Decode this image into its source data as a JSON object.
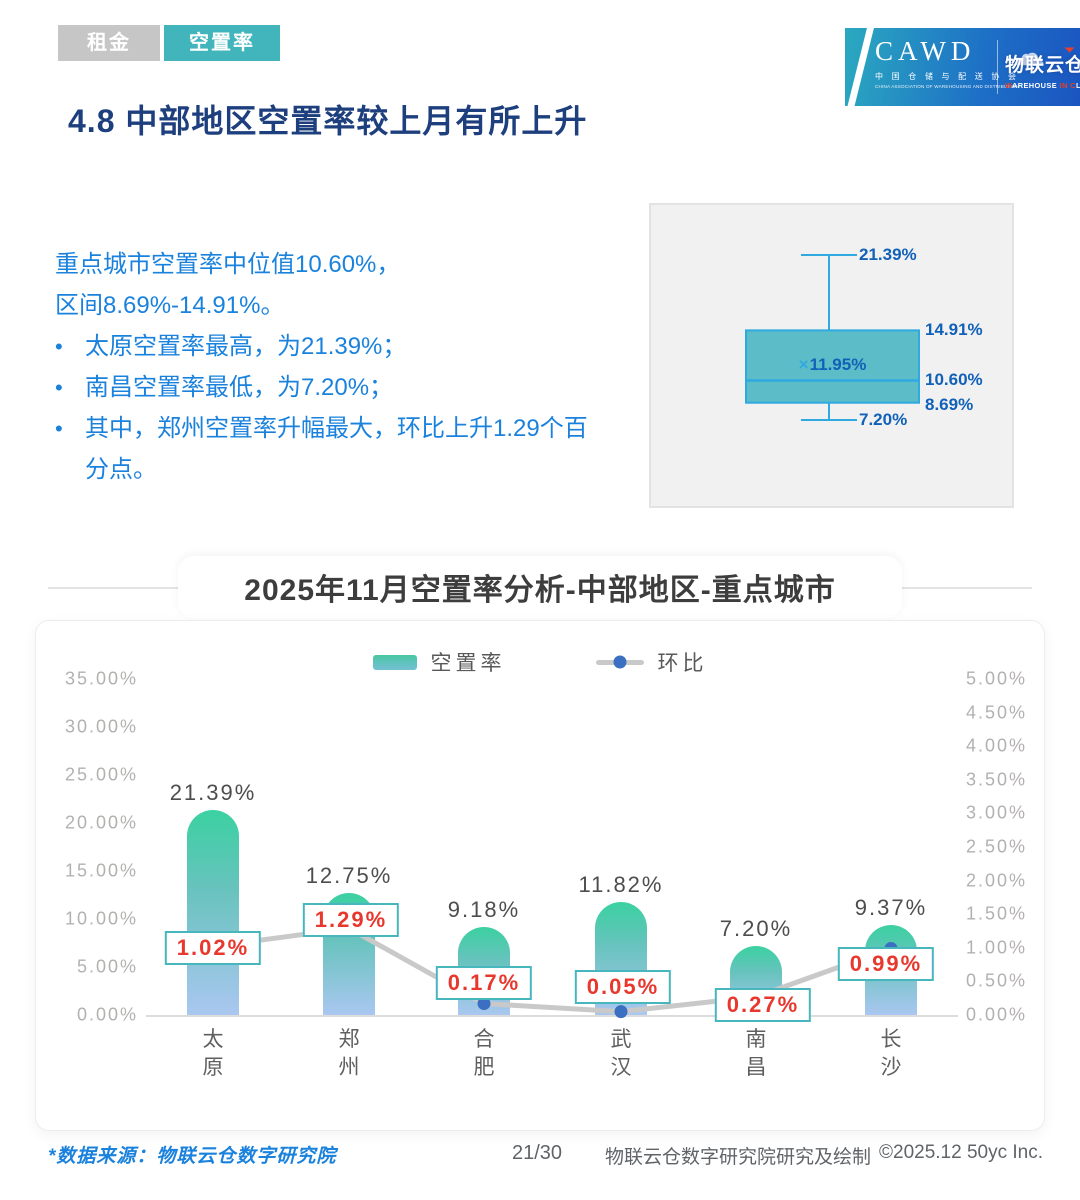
{
  "tabs": [
    {
      "label": "租金",
      "active": false
    },
    {
      "label": "空置率",
      "active": true
    }
  ],
  "logo": {
    "cawd_acronym": "CAWD",
    "cawd_cn": "中 国 仓 储 与 配 送 协 会",
    "cawd_en": "CHINA ASSOCIATION OF WAREHOUSING AND DISTRIBUTION",
    "brand_cn": "物联云仓",
    "brand_en_segments": [
      {
        "text": "W",
        "red": true
      },
      {
        "text": "AREHOUSE ",
        "red": false
      },
      {
        "text": "IN",
        "red": true
      },
      {
        "text": " ",
        "red": false
      },
      {
        "text": "C",
        "red": true
      },
      {
        "text": "LOUD",
        "red": false
      }
    ]
  },
  "page_title": "4.8 中部地区空置率较上月有所上升",
  "insight": {
    "intro_lines": [
      "重点城市空置率中位值10.60%，",
      "区间8.69%-14.91%。"
    ],
    "bullets": [
      "太原空置率最高，为21.39%；",
      "南昌空置率最低，为7.20%；",
      "其中，郑州空置率升幅最大，环比上升1.29个百分点。"
    ]
  },
  "boxplot": {
    "max": 21.39,
    "q3": 14.91,
    "mean": 11.95,
    "median": 10.6,
    "q1": 8.69,
    "min": 7.2,
    "labels": {
      "max": "21.39%",
      "q3": "14.91%",
      "mean_marker": "×",
      "mean": "11.95%",
      "median": "10.60%",
      "q1": "8.69%",
      "min": "7.20%"
    },
    "colors": {
      "box_fill": "#4fb8c4",
      "box_stroke": "#2fa9df",
      "label_text": "#1161b8"
    }
  },
  "chart_data": {
    "type": "bar",
    "subtype": "bar+line combo, dual axis",
    "title": "2025年11月空置率分析-中部地区-重点城市",
    "categories": [
      "太原",
      "郑州",
      "合肥",
      "武汉",
      "南昌",
      "长沙"
    ],
    "series": [
      {
        "name": "空置率",
        "type": "bar",
        "axis": "left",
        "values": [
          21.39,
          12.75,
          9.18,
          11.82,
          7.2,
          9.37
        ],
        "labels": [
          "21.39%",
          "12.75%",
          "9.18%",
          "11.82%",
          "7.20%",
          "9.37%"
        ]
      },
      {
        "name": "环比",
        "type": "line",
        "axis": "right",
        "values": [
          1.02,
          1.29,
          0.17,
          0.05,
          0.27,
          0.99
        ],
        "labels": [
          "1.02%",
          "1.29%",
          "0.17%",
          "0.05%",
          "0.27%",
          "0.99%"
        ]
      }
    ],
    "left_axis": {
      "min": 0,
      "max": 35,
      "ticks": [
        "35.00%",
        "30.00%",
        "25.00%",
        "20.00%",
        "15.00%",
        "10.00%",
        "5.00%",
        "0.00%"
      ]
    },
    "right_axis": {
      "min": 0,
      "max": 5,
      "ticks": [
        "5.00%",
        "4.50%",
        "4.00%",
        "3.50%",
        "3.00%",
        "2.50%",
        "2.00%",
        "1.50%",
        "1.00%",
        "0.50%",
        "0.00%"
      ]
    },
    "legend_position": "top-center",
    "grid": false,
    "colors": {
      "bar_top": "#3bd1a1",
      "bar_mid": "#67c3bd",
      "bar_bottom": "#aac7f0",
      "line": "#c9c9c9",
      "marker": "#3b6fc1",
      "label_text": "#e8382e",
      "label_border": "#48b6bd"
    }
  },
  "footer": {
    "source": "*数据来源：物联云仓数字研究院",
    "page": "21/30",
    "credit": "物联云仓数字研究院研究及绘制",
    "copyright": "©2025.12 50yc Inc."
  }
}
